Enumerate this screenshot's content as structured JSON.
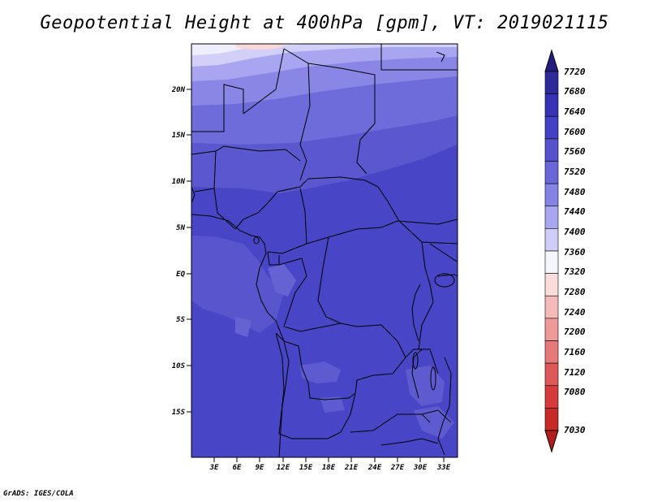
{
  "title": "Geopotential Height at 400hPa [gpm], VT: 2019021115",
  "credit": "GrADS: IGES/COLA",
  "map": {
    "lat_labels": [
      "20N",
      "15N",
      "10N",
      "5N",
      "EQ",
      "5S",
      "10S",
      "15S"
    ],
    "lon_labels": [
      "3E",
      "6E",
      "9E",
      "12E",
      "15E",
      "18E",
      "21E",
      "24E",
      "27E",
      "30E",
      "33E"
    ]
  },
  "colorbar": {
    "levels": [
      "7720",
      "7680",
      "7640",
      "7600",
      "7560",
      "7520",
      "7480",
      "7440",
      "7400",
      "7360",
      "7320",
      "7280",
      "7240",
      "7200",
      "7160",
      "7120",
      "7080",
      "7030"
    ],
    "colors": [
      "#241c7e",
      "#2e2a9a",
      "#3833b4",
      "#4340c4",
      "#5652cc",
      "#6a67d8",
      "#8683e6",
      "#a9a7f0",
      "#cfcdf8",
      "#f4f4fc",
      "#fbdcdc",
      "#f5baba",
      "#ee9a9a",
      "#e67a7a",
      "#de5a5a",
      "#d63c3c",
      "#c82a2a",
      "#b21e1e"
    ]
  }
}
